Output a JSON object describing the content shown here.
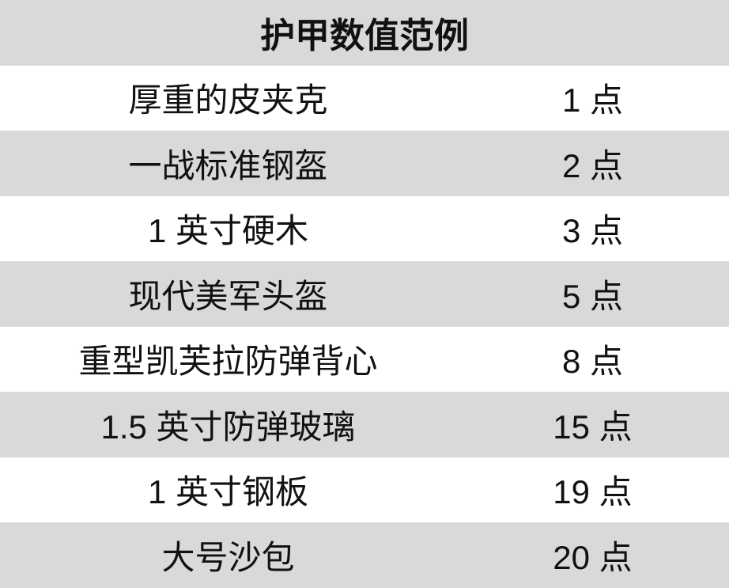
{
  "table": {
    "title": "护甲数值范例",
    "rows": [
      {
        "item": "厚重的皮夹克",
        "value": "1 点"
      },
      {
        "item": "一战标准钢盔",
        "value": "2 点"
      },
      {
        "item": "1 英寸硬木",
        "value": "3 点"
      },
      {
        "item": "现代美军头盔",
        "value": "5 点"
      },
      {
        "item": "重型凯芙拉防弹背心",
        "value": "8 点"
      },
      {
        "item": "1.5 英寸防弹玻璃",
        "value": "15 点"
      },
      {
        "item": "1 英寸钢板",
        "value": "19 点"
      },
      {
        "item": "大号沙包",
        "value": "20 点"
      }
    ],
    "colors": {
      "stripe": "#d9d9d9",
      "background": "#ffffff"
    }
  }
}
